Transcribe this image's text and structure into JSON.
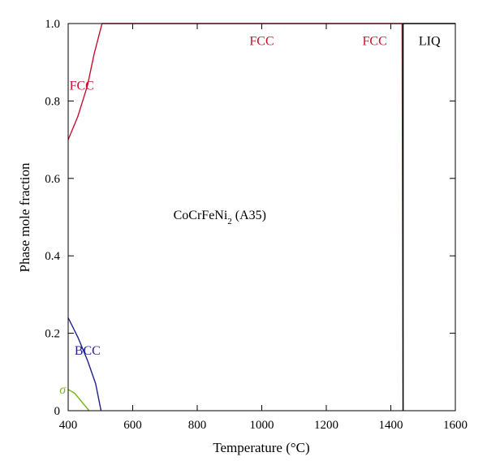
{
  "chart_data": {
    "type": "line",
    "title": "",
    "xlabel": "Temperature (°C)",
    "ylabel": "Phase mole fraction",
    "xlim": [
      400,
      1600
    ],
    "ylim": [
      0,
      1.0
    ],
    "x_ticks": [
      400,
      600,
      800,
      1000,
      1200,
      1400,
      1600
    ],
    "y_ticks": [
      0,
      0.2,
      0.4,
      0.6,
      0.8,
      1.0
    ],
    "x_tick_labels": [
      "400",
      "600",
      "800",
      "1000",
      "1200",
      "1400",
      "1600"
    ],
    "y_tick_labels": [
      "0",
      "0.2",
      "0.4",
      "0.6",
      "0.8",
      "1.0"
    ],
    "grid": false,
    "series": [
      {
        "color": "#c8102e",
        "points": [
          [
            400,
            0.7
          ],
          [
            430,
            0.76
          ],
          [
            460,
            0.84
          ],
          [
            480,
            0.92
          ],
          [
            505,
            1.0
          ],
          [
            1435,
            1.0
          ],
          [
            1435,
            0.98
          ],
          [
            1438,
            0.0
          ]
        ]
      },
      {
        "color": "#1f1f8a",
        "points": [
          [
            400,
            0.24
          ],
          [
            430,
            0.19
          ],
          [
            460,
            0.13
          ],
          [
            485,
            0.07
          ],
          [
            502,
            0.0
          ]
        ]
      },
      {
        "color": "#7ab51d",
        "points": [
          [
            400,
            0.055
          ],
          [
            420,
            0.045
          ],
          [
            445,
            0.02
          ],
          [
            465,
            0.0
          ]
        ]
      },
      {
        "color": "#000000",
        "points": [
          [
            1438,
            0.0
          ],
          [
            1438,
            1.0
          ],
          [
            1600,
            1.0
          ]
        ]
      }
    ],
    "annotations": [
      {
        "text": "FCC",
        "x": 442,
        "y": 0.84,
        "color": "#c8102e"
      },
      {
        "text": "FCC",
        "x": 1000,
        "y": 0.955,
        "color": "#c8102e"
      },
      {
        "text": "FCC",
        "x": 1350,
        "y": 0.955,
        "color": "#c8102e"
      },
      {
        "text": "LIQ",
        "x": 1520,
        "y": 0.955,
        "color": "#000000"
      },
      {
        "text": "BCC",
        "x": 460,
        "y": 0.155,
        "color": "#1f1f8a"
      },
      {
        "text": "σ",
        "x": 383,
        "y": 0.055,
        "color": "#7ab51d"
      },
      {
        "text": "CoCrFeNi",
        "sub": "2",
        "suffix": " (A35)",
        "x": 870,
        "y": 0.505,
        "color": "#000000"
      }
    ]
  }
}
